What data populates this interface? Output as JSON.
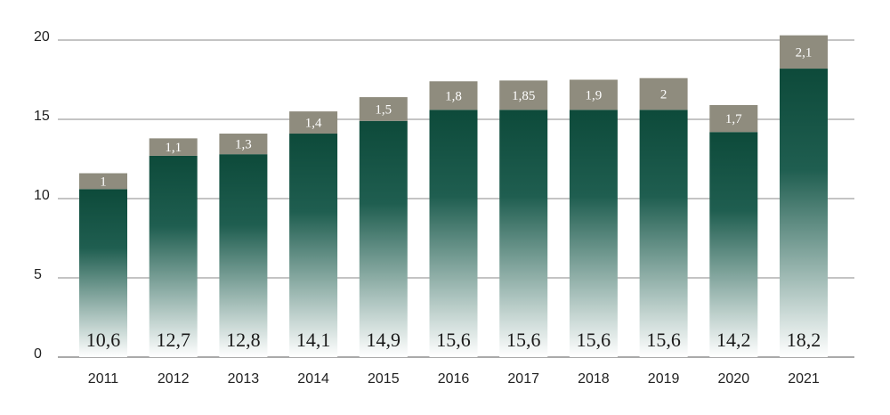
{
  "chart_data": {
    "type": "bar",
    "stacked": true,
    "categories": [
      "2011",
      "2012",
      "2013",
      "2014",
      "2015",
      "2016",
      "2017",
      "2018",
      "2019",
      "2020",
      "2021"
    ],
    "series": [
      {
        "values": [
          10.6,
          12.7,
          12.8,
          14.1,
          14.9,
          15.6,
          15.6,
          15.6,
          15.6,
          14.2,
          18.2
        ],
        "labels": [
          "10,6",
          "12,7",
          "12,8",
          "14,1",
          "14,9",
          "15,6",
          "15,6",
          "15,6",
          "15,6",
          "14,2",
          "18,2"
        ]
      },
      {
        "values": [
          1,
          1.1,
          1.3,
          1.4,
          1.5,
          1.8,
          1.85,
          1.9,
          2,
          1.7,
          2.1
        ],
        "labels": [
          "1",
          "1,1",
          "1,3",
          "1,4",
          "1,5",
          "1,8",
          "1,85",
          "1,9",
          "2",
          "1,7",
          "2,1"
        ]
      }
    ],
    "yticks": [
      "0",
      "5",
      "10",
      "15",
      "20"
    ],
    "ylim": [
      0,
      20
    ],
    "grid": true,
    "title": "",
    "xlabel": "",
    "ylabel": "",
    "colors": {
      "base_top": "#0d4a3a",
      "base_bottom": "#ffffff",
      "stack_top": "#8f8c7e",
      "grid": "#8a8a8a"
    }
  }
}
